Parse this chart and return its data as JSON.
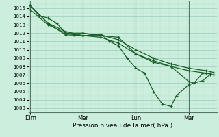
{
  "title": "",
  "xlabel": "Pression niveau de la mer( hPa )",
  "bg_color": "#cceedd",
  "grid_major_color": "#99ccbb",
  "grid_minor_color": "#bbddcc",
  "line_color": "#1a5e2a",
  "ylim": [
    1002.5,
    1015.8
  ],
  "yticks": [
    1003,
    1004,
    1005,
    1006,
    1007,
    1008,
    1009,
    1010,
    1011,
    1012,
    1013,
    1014,
    1015
  ],
  "xtick_labels": [
    "Dim",
    "Mer",
    "Lun",
    "Mar"
  ],
  "xtick_positions": [
    0,
    3,
    6,
    9
  ],
  "xlim": [
    -0.1,
    10.6
  ],
  "lines": [
    [
      0.0,
      1015.3,
      0.5,
      1014.1,
      1.0,
      1013.8,
      1.5,
      1013.2,
      2.0,
      1012.0,
      2.5,
      1011.8,
      3.0,
      1012.0,
      3.5,
      1011.8,
      4.0,
      1011.9,
      4.5,
      1011.0,
      5.0,
      1010.5,
      5.5,
      1009.0,
      6.0,
      1007.8,
      6.5,
      1007.2,
      7.0,
      1005.0,
      7.5,
      1003.5,
      8.0,
      1003.2,
      8.3,
      1004.5,
      9.0,
      1005.8,
      9.3,
      1006.0,
      9.8,
      1007.2,
      10.2,
      1007.2
    ],
    [
      0.0,
      1015.3,
      1.0,
      1013.2,
      2.0,
      1012.2,
      3.0,
      1011.7,
      4.0,
      1011.8,
      5.0,
      1011.2,
      6.0,
      1010.0,
      7.0,
      1009.0,
      8.0,
      1008.3,
      9.0,
      1007.8,
      10.0,
      1007.5,
      10.4,
      1007.3
    ],
    [
      0.0,
      1015.3,
      1.0,
      1013.2,
      2.0,
      1011.8,
      3.0,
      1011.7,
      4.0,
      1011.5,
      5.0,
      1010.8,
      6.0,
      1009.5,
      7.0,
      1008.7,
      8.0,
      1008.0,
      9.0,
      1007.5,
      10.0,
      1007.2,
      10.4,
      1007.0
    ],
    [
      0.0,
      1014.8,
      1.0,
      1013.0,
      2.0,
      1012.0,
      3.0,
      1012.0,
      4.0,
      1011.7,
      5.0,
      1011.5,
      6.0,
      1009.5,
      7.0,
      1008.5,
      8.0,
      1008.0,
      9.0,
      1006.2,
      9.3,
      1006.0,
      9.8,
      1006.3,
      10.2,
      1007.0
    ]
  ]
}
